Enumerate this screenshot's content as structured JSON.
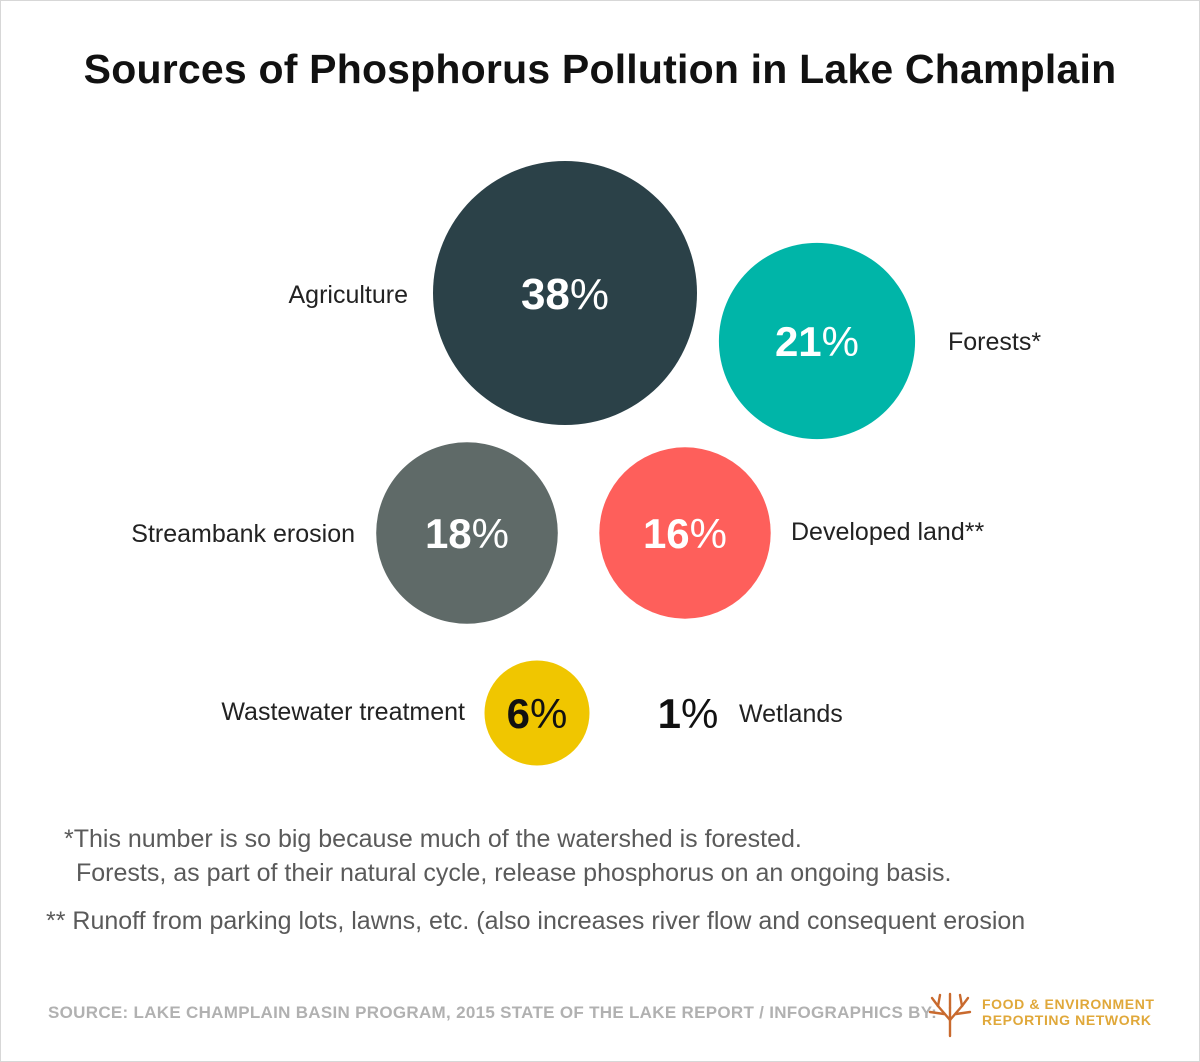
{
  "title": "Sources of Phosphorus Pollution in Lake Champlain",
  "chart_data": {
    "type": "bubble",
    "title": "Sources of Phosphorus Pollution in Lake Champlain",
    "unit": "%",
    "items": [
      {
        "label": "Agriculture",
        "value": 38,
        "color": "#2b4148",
        "label_side": "left"
      },
      {
        "label": "Forests*",
        "value": 21,
        "color": "#00b5a8",
        "label_side": "right"
      },
      {
        "label": "Streambank erosion",
        "value": 18,
        "color": "#5f6a68",
        "label_side": "left"
      },
      {
        "label": "Developed land**",
        "value": 16,
        "color": "#fe5f5b",
        "label_side": "right"
      },
      {
        "label": "Wastewater treatment",
        "value": 6,
        "color": "#f0c600",
        "label_side": "left"
      },
      {
        "label": "Wetlands",
        "value": 1,
        "color": "#ffffff",
        "label_side": "right"
      }
    ]
  },
  "notes": {
    "forests_line1": "*This number is so big because much of the watershed is forested.",
    "forests_line2": "Forests, as part of their natural cycle, release phosphorus on an ongoing basis.",
    "developed": "** Runoff from parking lots, lawns, etc. (also increases river flow and consequent erosion"
  },
  "footer": {
    "source": "SOURCE: LAKE CHAMPLAIN BASIN PROGRAM, 2015 STATE OF THE LAKE REPORT  / INFOGRAPHICS BY:",
    "logo_line1": "FOOD & ENVIRONMENT",
    "logo_line2": "REPORTING NETWORK",
    "logo_color": "#e0a83a"
  }
}
